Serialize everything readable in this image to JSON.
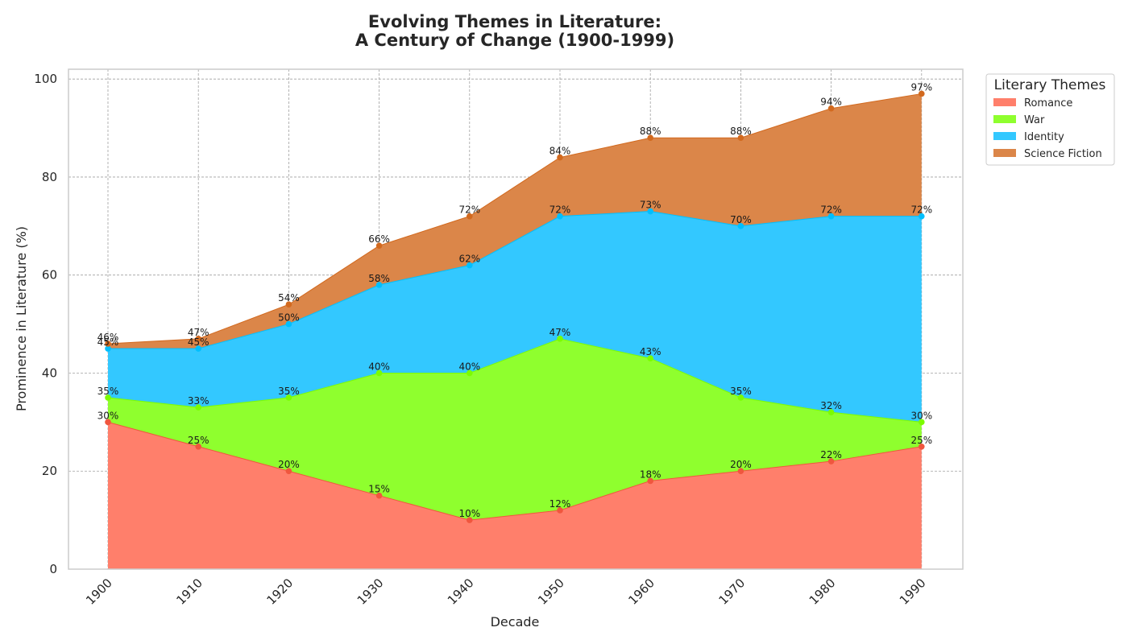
{
  "chart_data": {
    "type": "area",
    "stacked": true,
    "title": [
      "Evolving Themes in Literature:",
      "A Century of Change (1900-1999)"
    ],
    "xlabel": "Decade",
    "ylabel": "Prominence in Literature (%)",
    "categories": [
      "1900",
      "1910",
      "1920",
      "1930",
      "1940",
      "1950",
      "1960",
      "1970",
      "1980",
      "1990"
    ],
    "ylim": [
      0,
      102
    ],
    "yticks": [
      0,
      20,
      40,
      60,
      80,
      100
    ],
    "grid": true,
    "legend": {
      "title": "Literary Themes",
      "placement": "outside-top-right"
    },
    "series": [
      {
        "name": "Romance",
        "values": [
          30,
          25,
          20,
          15,
          10,
          12,
          18,
          20,
          22,
          25
        ],
        "color": "#FF7F6B",
        "marker": "#F0563E"
      },
      {
        "name": "War",
        "values": [
          5,
          8,
          15,
          25,
          30,
          35,
          25,
          15,
          10,
          5
        ],
        "color": "#8FFF2E",
        "marker": "#7CFC00"
      },
      {
        "name": "Identity",
        "values": [
          10,
          12,
          15,
          18,
          22,
          25,
          30,
          35,
          40,
          42
        ],
        "color": "#33C8FF",
        "marker": "#00BFFF"
      },
      {
        "name": "Science Fiction",
        "values": [
          1,
          2,
          4,
          8,
          10,
          12,
          15,
          18,
          22,
          25
        ],
        "color": "#DB8649",
        "marker": "#D2691E"
      }
    ],
    "data_labels": [
      [
        "30%",
        "25%",
        "20%",
        "15%",
        "10%",
        "12%",
        "18%",
        "20%",
        "22%",
        "25%"
      ],
      [
        "35%",
        "33%",
        "35%",
        "40%",
        "40%",
        "47%",
        "43%",
        "35%",
        "32%",
        "30%"
      ],
      [
        "45%",
        "45%",
        "50%",
        "58%",
        "62%",
        "72%",
        "73%",
        "70%",
        "72%",
        "72%"
      ],
      [
        "46%",
        "47%",
        "54%",
        "66%",
        "72%",
        "84%",
        "88%",
        "88%",
        "94%",
        "97%"
      ]
    ]
  }
}
